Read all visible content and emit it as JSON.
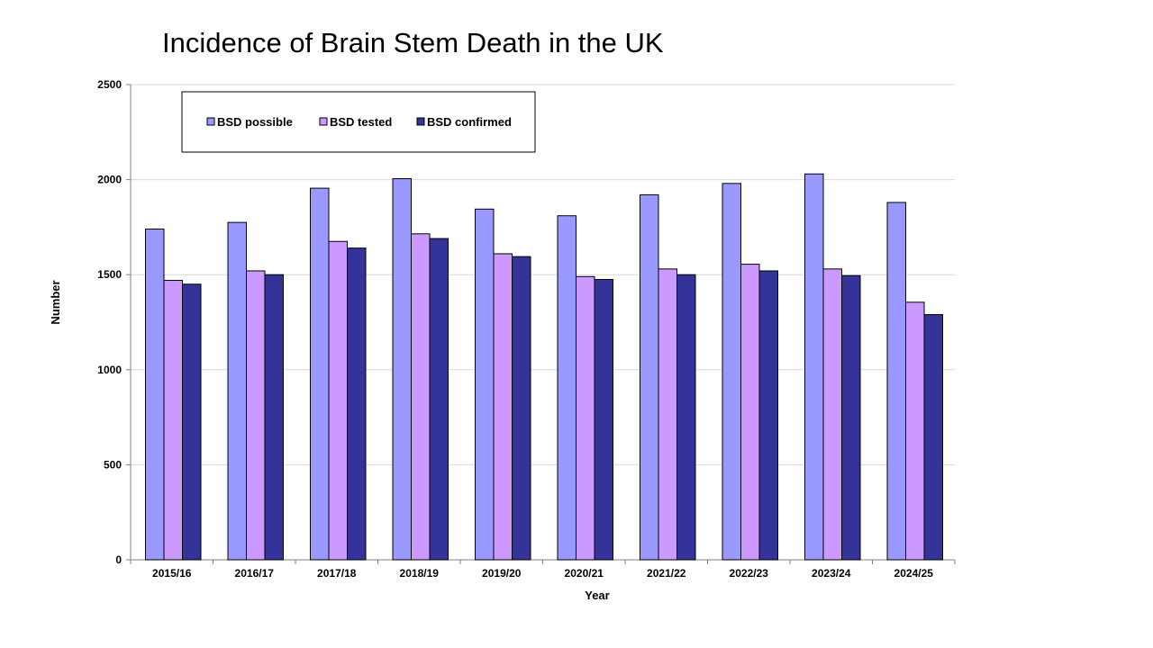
{
  "chart_data": {
    "type": "bar",
    "title": "Incidence of Brain Stem Death in the UK",
    "xlabel": "Year",
    "ylabel": "Number",
    "ylim": [
      0,
      2500
    ],
    "yticks": [
      0,
      500,
      1000,
      1500,
      2000,
      2500
    ],
    "grid": true,
    "legend_position": "top-left",
    "categories": [
      "2015/16",
      "2016/17",
      "2017/18",
      "2018/19",
      "2019/20",
      "2020/21",
      "2021/22",
      "2022/23",
      "2023/24",
      "2024/25"
    ],
    "series": [
      {
        "name": "BSD possible",
        "color": "#9999FF",
        "values": [
          1740,
          1775,
          1955,
          2005,
          1845,
          1810,
          1920,
          1980,
          2030,
          1880
        ]
      },
      {
        "name": "BSD tested",
        "color": "#CC99FF",
        "values": [
          1470,
          1520,
          1675,
          1715,
          1610,
          1490,
          1530,
          1555,
          1530,
          1355
        ]
      },
      {
        "name": "BSD confirmed",
        "color": "#333399",
        "values": [
          1450,
          1500,
          1640,
          1690,
          1595,
          1475,
          1500,
          1520,
          1495,
          1290
        ]
      }
    ]
  }
}
